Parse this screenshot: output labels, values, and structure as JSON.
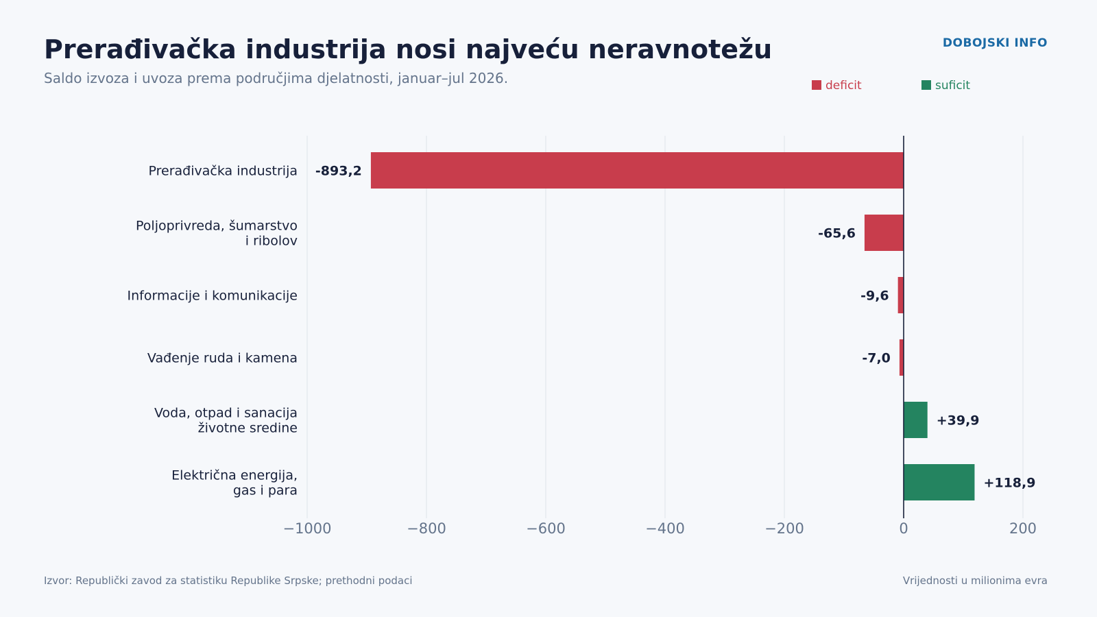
{
  "header": {
    "title": "Prerađivačka industrija nosi najveću neravnotežu",
    "subtitle": "Saldo izvoza i uvoza prema područjima djelatnosti, januar–jul 2026.",
    "brand": "DOBOJSKI INFO"
  },
  "legend": {
    "deficit": {
      "label": "deficit",
      "color": "#c83d4c"
    },
    "surplus": {
      "label": "suficit",
      "color": "#248460"
    }
  },
  "footer": {
    "source": "Izvor: Republički zavod za statistiku Republike Srpske; prethodni podaci",
    "unit": "Vrijednosti u milionima evra"
  },
  "chart_data": {
    "type": "bar",
    "orientation": "horizontal",
    "categories": [
      [
        "Prerađivačka industrija"
      ],
      [
        "Poljoprivreda, šumarstvo",
        "i ribolov"
      ],
      [
        "Informacije i komunikacije"
      ],
      [
        "Vađenje ruda i kamena"
      ],
      [
        "Voda, otpad i sanacija",
        "životne sredine"
      ],
      [
        "Električna energija,",
        "gas i para"
      ]
    ],
    "values": [
      -893.2,
      -65.6,
      -9.6,
      -7.0,
      39.9,
      118.9
    ],
    "value_labels": [
      "-893,2",
      "-65,6",
      "-9,6",
      "-7,0",
      "+39,9",
      "+118,9"
    ],
    "xlim": [
      -1000,
      200
    ],
    "xticks": [
      -1000,
      -800,
      -600,
      -400,
      -200,
      0,
      200
    ],
    "xtick_labels": [
      "−1000",
      "−800",
      "−600",
      "−400",
      "−200",
      "0",
      "200"
    ],
    "grid": true
  }
}
